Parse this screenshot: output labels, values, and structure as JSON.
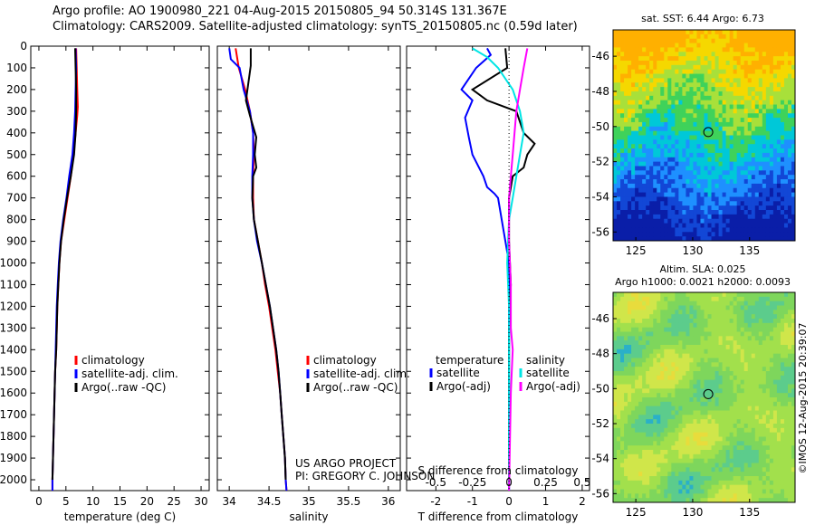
{
  "header": {
    "line1": "Argo profile: AO 1900980_221 04-Aug-2015 20150805_94 50.314S 131.367E",
    "line2": "Climatology: CARS2009. Satellite-adjusted climatology: synTS_20150805.nc (0.59d later)"
  },
  "colors": {
    "climatology": "#ff0000",
    "satellite": "#0000ff",
    "argo": "#000000",
    "sat_salinity": "#00e5e5",
    "argo_salinity": "#ff00ff"
  },
  "depth_axis": {
    "ylim": [
      0,
      2050
    ],
    "ticks": [
      0,
      100,
      200,
      300,
      400,
      500,
      600,
      700,
      800,
      900,
      1000,
      1100,
      1200,
      1300,
      1400,
      1500,
      1600,
      1700,
      1800,
      1900,
      2000
    ]
  },
  "chart_data": [
    {
      "type": "line",
      "xlabel": "temperature (deg C)",
      "xlim": [
        -1.5,
        31.5
      ],
      "xticks": [
        0,
        5,
        10,
        15,
        20,
        25,
        30
      ],
      "legend": [
        "climatology",
        "satellite-adj. clim.",
        "Argo(..raw -QC)"
      ],
      "legend_position": "bottom-right",
      "series": [
        {
          "name": "climatology",
          "color": "#ff0000",
          "points": [
            [
              6.9,
              10
            ],
            [
              7.0,
              100
            ],
            [
              7.1,
              200
            ],
            [
              7.2,
              280
            ],
            [
              7.1,
              320
            ],
            [
              6.8,
              400
            ],
            [
              6.4,
              500
            ],
            [
              5.9,
              600
            ],
            [
              5.3,
              700
            ],
            [
              4.7,
              800
            ],
            [
              4.1,
              900
            ],
            [
              3.8,
              1000
            ],
            [
              3.6,
              1100
            ],
            [
              3.4,
              1200
            ],
            [
              3.3,
              1300
            ],
            [
              3.2,
              1400
            ],
            [
              3.0,
              1500
            ],
            [
              2.9,
              1600
            ],
            [
              2.8,
              1700
            ],
            [
              2.7,
              1800
            ],
            [
              2.6,
              1900
            ],
            [
              2.5,
              2000
            ],
            [
              2.5,
              2050
            ]
          ]
        },
        {
          "name": "satellite-adj. clim.",
          "color": "#0000ff",
          "points": [
            [
              6.8,
              10
            ],
            [
              6.9,
              100
            ],
            [
              6.8,
              200
            ],
            [
              6.7,
              300
            ],
            [
              6.5,
              400
            ],
            [
              6.2,
              500
            ],
            [
              5.6,
              600
            ],
            [
              5.1,
              700
            ],
            [
              4.5,
              800
            ],
            [
              4.0,
              900
            ],
            [
              3.7,
              1000
            ],
            [
              3.5,
              1100
            ],
            [
              3.3,
              1200
            ],
            [
              3.2,
              1300
            ],
            [
              3.1,
              1400
            ],
            [
              3.0,
              1500
            ],
            [
              2.9,
              1600
            ],
            [
              2.8,
              1700
            ],
            [
              2.7,
              1800
            ],
            [
              2.6,
              1900
            ],
            [
              2.5,
              2000
            ],
            [
              2.5,
              2050
            ]
          ]
        },
        {
          "name": "Argo(..raw -QC)",
          "color": "#000000",
          "points": [
            [
              6.7,
              10
            ],
            [
              6.8,
              100
            ],
            [
              6.9,
              200
            ],
            [
              6.9,
              300
            ],
            [
              6.8,
              400
            ],
            [
              6.5,
              500
            ],
            [
              5.9,
              600
            ],
            [
              5.2,
              700
            ],
            [
              4.6,
              800
            ],
            [
              4.1,
              900
            ],
            [
              3.8,
              1000
            ],
            [
              3.6,
              1100
            ],
            [
              3.4,
              1200
            ],
            [
              3.3,
              1300
            ],
            [
              3.2,
              1400
            ],
            [
              3.0,
              1500
            ],
            [
              2.9,
              1600
            ],
            [
              2.8,
              1700
            ],
            [
              2.7,
              1800
            ],
            [
              2.6,
              1900
            ],
            [
              2.5,
              2000
            ]
          ]
        }
      ]
    },
    {
      "type": "line",
      "xlabel": "salinity",
      "xlim": [
        33.85,
        36.15
      ],
      "xticks": [
        34,
        34.5,
        35,
        35.5,
        36
      ],
      "xtick_labels": [
        "34",
        "34.5",
        "35",
        "35.5",
        "36"
      ],
      "legend": [
        "climatology",
        "satellite-adj. clim.",
        "Argo(..raw -QC)"
      ],
      "legend_position": "bottom-right",
      "annotation": [
        "US ARGO PROJECT",
        "PI: GREGORY C. JOHNSON"
      ],
      "series": [
        {
          "name": "climatology",
          "color": "#ff0000",
          "points": [
            [
              34.08,
              10
            ],
            [
              34.12,
              100
            ],
            [
              34.2,
              200
            ],
            [
              34.26,
              300
            ],
            [
              34.3,
              400
            ],
            [
              34.31,
              500
            ],
            [
              34.3,
              600
            ],
            [
              34.3,
              700
            ],
            [
              34.31,
              800
            ],
            [
              34.36,
              900
            ],
            [
              34.41,
              1000
            ],
            [
              34.45,
              1100
            ],
            [
              34.5,
              1200
            ],
            [
              34.54,
              1300
            ],
            [
              34.58,
              1400
            ],
            [
              34.61,
              1500
            ],
            [
              34.64,
              1600
            ],
            [
              34.66,
              1700
            ],
            [
              34.68,
              1800
            ],
            [
              34.7,
              1900
            ],
            [
              34.71,
              2000
            ],
            [
              34.72,
              2050
            ]
          ]
        },
        {
          "name": "satellite-adj. clim.",
          "color": "#0000ff",
          "points": [
            [
              34.0,
              10
            ],
            [
              34.02,
              60
            ],
            [
              34.13,
              100
            ],
            [
              34.18,
              200
            ],
            [
              34.26,
              300
            ],
            [
              34.3,
              400
            ],
            [
              34.3,
              500
            ],
            [
              34.29,
              600
            ],
            [
              34.29,
              700
            ],
            [
              34.31,
              800
            ],
            [
              34.35,
              900
            ],
            [
              34.41,
              1000
            ],
            [
              34.46,
              1100
            ],
            [
              34.51,
              1200
            ],
            [
              34.55,
              1300
            ],
            [
              34.59,
              1400
            ],
            [
              34.62,
              1500
            ],
            [
              34.64,
              1600
            ],
            [
              34.66,
              1700
            ],
            [
              34.68,
              1800
            ],
            [
              34.7,
              1900
            ],
            [
              34.71,
              2000
            ],
            [
              34.72,
              2050
            ]
          ]
        },
        {
          "name": "Argo(..raw -QC)",
          "color": "#000000",
          "points": [
            [
              34.27,
              10
            ],
            [
              34.27,
              90
            ],
            [
              34.21,
              250
            ],
            [
              34.26,
              320
            ],
            [
              34.34,
              420
            ],
            [
              34.32,
              500
            ],
            [
              34.34,
              560
            ],
            [
              34.3,
              600
            ],
            [
              34.29,
              700
            ],
            [
              34.31,
              800
            ],
            [
              34.36,
              900
            ],
            [
              34.41,
              1000
            ],
            [
              34.46,
              1100
            ],
            [
              34.51,
              1200
            ],
            [
              34.55,
              1300
            ],
            [
              34.59,
              1400
            ],
            [
              34.62,
              1500
            ],
            [
              34.64,
              1600
            ],
            [
              34.66,
              1700
            ],
            [
              34.68,
              1800
            ],
            [
              34.7,
              1900
            ],
            [
              34.71,
              2000
            ]
          ]
        }
      ]
    },
    {
      "type": "line",
      "xlabel": "T difference from climatology",
      "xlabel_top": "S difference from climatology",
      "xlim": [
        -2.8,
        2.2
      ],
      "xticks": [
        -2,
        -1,
        0,
        1,
        2
      ],
      "s_ticks": [
        -0.5,
        -0.25,
        0,
        0.25,
        0.5
      ],
      "s_tick_labels": [
        "-0.5",
        "-0.25",
        "0",
        "0.25",
        "0.5"
      ],
      "s_scale": 0.25,
      "legend": {
        "temperature": [
          "temperature",
          "satellite",
          "Argo(-adj)"
        ],
        "salinity": [
          "salinity",
          "satellite",
          "Argo(-adj)"
        ]
      },
      "legend_position": "bottom",
      "series": [
        {
          "name": "satellite",
          "color": "#0000ff",
          "points": [
            [
              -0.6,
              10
            ],
            [
              -0.5,
              40
            ],
            [
              -0.9,
              100
            ],
            [
              -1.3,
              200
            ],
            [
              -1.0,
              250
            ],
            [
              -1.2,
              330
            ],
            [
              -1.1,
              420
            ],
            [
              -1.0,
              500
            ],
            [
              -0.7,
              600
            ],
            [
              -0.6,
              650
            ],
            [
              -0.4,
              680
            ],
            [
              -0.3,
              700
            ],
            [
              -0.2,
              800
            ],
            [
              -0.1,
              900
            ],
            [
              0.0,
              1000
            ],
            [
              0.0,
              1100
            ],
            [
              0.0,
              1200
            ],
            [
              0.0,
              1400
            ],
            [
              0.0,
              1600
            ],
            [
              0.0,
              2050
            ]
          ]
        },
        {
          "name": "Argo(-adj)",
          "color": "#000000",
          "points": [
            [
              -0.1,
              10
            ],
            [
              -0.05,
              100
            ],
            [
              -1.0,
              200
            ],
            [
              -0.6,
              250
            ],
            [
              0.2,
              300
            ],
            [
              0.4,
              400
            ],
            [
              0.7,
              450
            ],
            [
              0.5,
              500
            ],
            [
              0.4,
              560
            ],
            [
              0.1,
              600
            ],
            [
              0.0,
              700
            ],
            [
              0.0,
              900
            ],
            [
              0.05,
              1100
            ],
            [
              0.0,
              1300
            ],
            [
              0.0,
              1500
            ],
            [
              0.0,
              2000
            ]
          ]
        },
        {
          "name": "satellite",
          "color": "#00e5e5",
          "points": [
            [
              -1.0,
              10
            ],
            [
              -0.6,
              50
            ],
            [
              -0.3,
              100
            ],
            [
              0.1,
              200
            ],
            [
              0.3,
              300
            ],
            [
              0.4,
              400
            ],
            [
              0.3,
              500
            ],
            [
              0.2,
              600
            ],
            [
              0.1,
              700
            ],
            [
              0.0,
              800
            ],
            [
              -0.05,
              1000
            ],
            [
              0.0,
              1200
            ],
            [
              0.0,
              1500
            ],
            [
              0.0,
              2050
            ]
          ]
        },
        {
          "name": "Argo(-adj)",
          "color": "#ff00ff",
          "points": [
            [
              0.5,
              10
            ],
            [
              0.4,
              100
            ],
            [
              0.3,
              200
            ],
            [
              0.2,
              300
            ],
            [
              0.15,
              400
            ],
            [
              0.1,
              500
            ],
            [
              0.05,
              600
            ],
            [
              0.0,
              700
            ],
            [
              0.0,
              900
            ],
            [
              0.05,
              1100
            ],
            [
              0.05,
              1300
            ],
            [
              0.1,
              1400
            ],
            [
              0.05,
              1600
            ],
            [
              0.0,
              2050
            ]
          ]
        }
      ]
    },
    {
      "type": "heatmap",
      "title": "sat. SST: 6.44  Argo: 6.73",
      "xlim": [
        123,
        139
      ],
      "ylim": [
        -56.5,
        -44.5
      ],
      "xticks": [
        125,
        130,
        135
      ],
      "yticks": [
        -46,
        -48,
        -50,
        -52,
        -54,
        -56
      ],
      "marker": [
        131.367,
        -50.314
      ],
      "palette": [
        "#0a1ea8",
        "#1247d6",
        "#1e90ff",
        "#00c8d8",
        "#3fd25a",
        "#a8e03a",
        "#f5d800",
        "#ffb000"
      ]
    },
    {
      "type": "heatmap",
      "title": "Altim. SLA: 0.025",
      "subtitle": "Argo h1000: 0.0021  h2000: 0.0093",
      "xlim": [
        123,
        139
      ],
      "ylim": [
        -56.5,
        -44.5
      ],
      "xticks": [
        125,
        130,
        135
      ],
      "yticks": [
        -46,
        -48,
        -50,
        -52,
        -54,
        -56
      ],
      "marker": [
        131.367,
        -50.314
      ],
      "side_label": "©IMOS 12-Aug-2015 20:39:07",
      "palette": [
        "#2ab0c8",
        "#5ccc8c",
        "#7ed65c",
        "#a2e04c",
        "#d0e64a",
        "#e8dc3c"
      ]
    }
  ]
}
